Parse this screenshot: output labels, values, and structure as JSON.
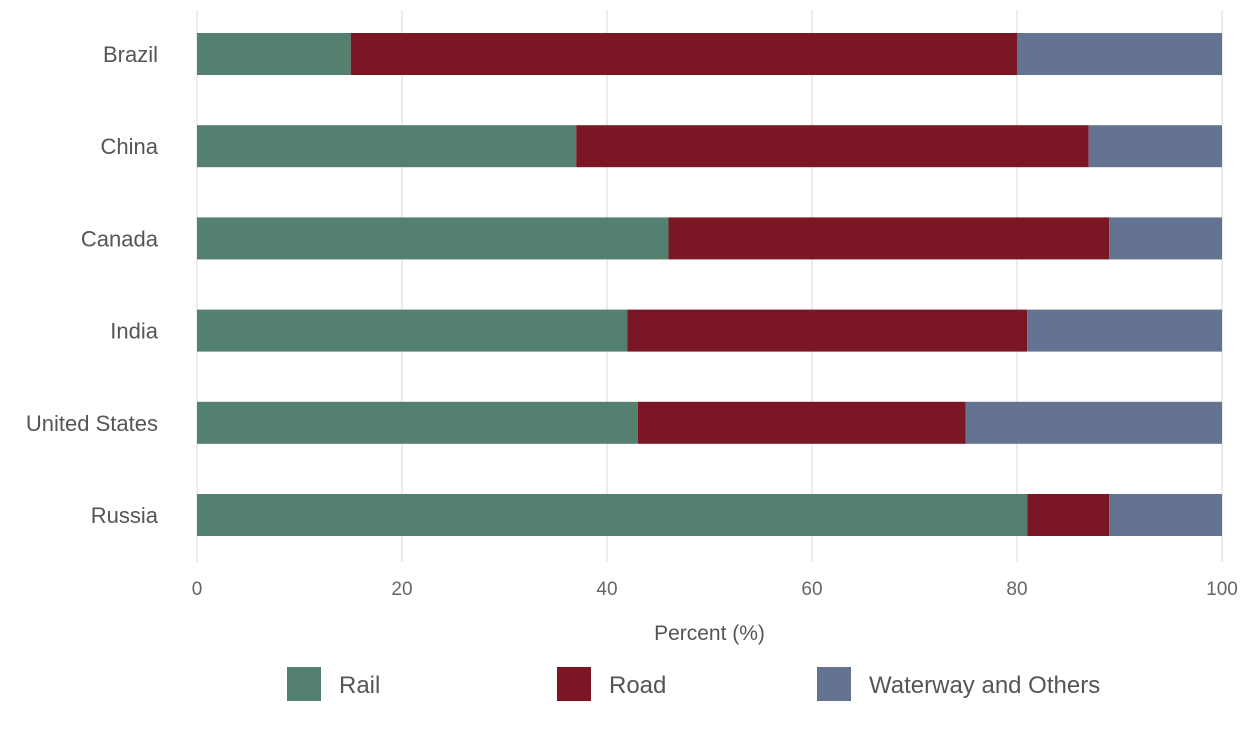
{
  "chart_data": {
    "type": "bar",
    "orientation": "horizontal",
    "stacked": true,
    "categories": [
      "Brazil",
      "China",
      "Canada",
      "India",
      "United States",
      "Russia"
    ],
    "series": [
      {
        "name": "Rail",
        "color": "#54806f",
        "values": [
          15,
          37,
          46,
          42,
          43,
          81
        ]
      },
      {
        "name": "Road",
        "color": "#7b1724",
        "values": [
          65,
          50,
          43,
          39,
          32,
          8
        ]
      },
      {
        "name": "Waterway and Others",
        "color": "#657393",
        "values": [
          20,
          13,
          11,
          19,
          25,
          11
        ]
      }
    ],
    "xlabel": "Percent (%)",
    "ylabel": "",
    "xlim": [
      0,
      100
    ],
    "xticks": [
      0,
      20,
      40,
      60,
      80,
      100
    ],
    "grid": "vertical",
    "legend_position": "bottom"
  }
}
